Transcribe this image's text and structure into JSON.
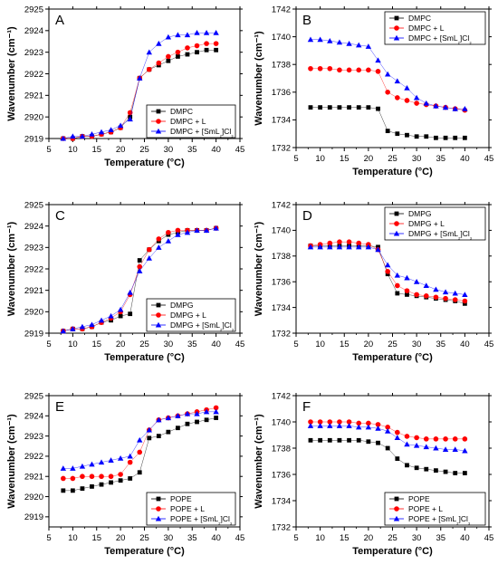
{
  "chart_data": [
    {
      "type": "line",
      "panel": "A",
      "xlabel": "Temperature (°C)",
      "ylabel": "Wavenumber (cm⁻¹)",
      "xlim": [
        5,
        45
      ],
      "ylim": [
        2919,
        2925
      ],
      "xticks": [
        5,
        10,
        15,
        20,
        25,
        30,
        35,
        40,
        45
      ],
      "yticks": [
        2919,
        2920,
        2921,
        2922,
        2923,
        2924,
        2925
      ],
      "legend_position": "bottom-right",
      "x": [
        8,
        10,
        12,
        14,
        16,
        18,
        20,
        22,
        24,
        26,
        28,
        30,
        32,
        34,
        36,
        38,
        40
      ],
      "series": [
        {
          "name": "DMPC",
          "marker": "square",
          "color": "#000000",
          "values": [
            2919.0,
            2919.0,
            2919.1,
            2919.1,
            2919.2,
            2919.3,
            2919.5,
            2920.0,
            2921.8,
            2922.2,
            2922.4,
            2922.6,
            2922.8,
            2922.9,
            2923.0,
            2923.1,
            2923.1
          ]
        },
        {
          "name": "DMPC + L",
          "marker": "circle",
          "color": "#ff0000",
          "values": [
            2919.0,
            2919.0,
            2919.1,
            2919.1,
            2919.2,
            2919.3,
            2919.5,
            2920.2,
            2921.8,
            2922.2,
            2922.5,
            2922.8,
            2923.0,
            2923.2,
            2923.3,
            2923.4,
            2923.4
          ]
        },
        {
          "name": "DMPC + [SmL₂]Cl₃",
          "marker": "triangle",
          "color": "#0000ff",
          "values": [
            2919.0,
            2919.1,
            2919.1,
            2919.2,
            2919.3,
            2919.4,
            2919.6,
            2919.9,
            2921.8,
            2923.0,
            2923.4,
            2923.7,
            2923.8,
            2923.8,
            2923.9,
            2923.9,
            2923.9
          ]
        }
      ]
    },
    {
      "type": "line",
      "panel": "B",
      "xlabel": "Temperature (°C)",
      "ylabel": "Wavenumber (cm⁻¹)",
      "xlim": [
        5,
        45
      ],
      "ylim": [
        1732,
        1742
      ],
      "xticks": [
        5,
        10,
        15,
        20,
        25,
        30,
        35,
        40,
        45
      ],
      "yticks": [
        1732,
        1734,
        1736,
        1738,
        1740,
        1742
      ],
      "legend_position": "top-right",
      "x": [
        8,
        10,
        12,
        14,
        16,
        18,
        20,
        22,
        24,
        26,
        28,
        30,
        32,
        34,
        36,
        38,
        40
      ],
      "series": [
        {
          "name": "DMPC",
          "marker": "square",
          "color": "#000000",
          "values": [
            1734.9,
            1734.9,
            1734.9,
            1734.9,
            1734.9,
            1734.9,
            1734.9,
            1734.8,
            1733.2,
            1733.0,
            1732.9,
            1732.8,
            1732.8,
            1732.7,
            1732.7,
            1732.7,
            1732.7
          ]
        },
        {
          "name": "DMPC + L",
          "marker": "circle",
          "color": "#ff0000",
          "values": [
            1737.7,
            1737.7,
            1737.7,
            1737.6,
            1737.6,
            1737.6,
            1737.6,
            1737.5,
            1736.0,
            1735.6,
            1735.4,
            1735.2,
            1735.1,
            1735.0,
            1734.9,
            1734.8,
            1734.7
          ]
        },
        {
          "name": "DMPC + [SmL₂]Cl₃",
          "marker": "triangle",
          "color": "#0000ff",
          "values": [
            1739.8,
            1739.8,
            1739.7,
            1739.6,
            1739.5,
            1739.4,
            1739.3,
            1738.3,
            1737.3,
            1736.8,
            1736.3,
            1735.6,
            1735.2,
            1735.0,
            1734.9,
            1734.8,
            1734.8
          ]
        }
      ]
    },
    {
      "type": "line",
      "panel": "C",
      "xlabel": "Temperature (°C)",
      "ylabel": "Wavenumber (cm⁻¹)",
      "xlim": [
        5,
        45
      ],
      "ylim": [
        2919,
        2925
      ],
      "xticks": [
        5,
        10,
        15,
        20,
        25,
        30,
        35,
        40,
        45
      ],
      "yticks": [
        2919,
        2920,
        2921,
        2922,
        2923,
        2924,
        2925
      ],
      "legend_position": "bottom-right",
      "x": [
        8,
        10,
        12,
        14,
        16,
        18,
        20,
        22,
        24,
        26,
        28,
        30,
        32,
        34,
        36,
        38,
        40
      ],
      "series": [
        {
          "name": "DMPG",
          "marker": "square",
          "color": "#000000",
          "values": [
            2919.1,
            2919.2,
            2919.2,
            2919.3,
            2919.5,
            2919.6,
            2919.8,
            2919.9,
            2922.4,
            2922.9,
            2923.3,
            2923.6,
            2923.7,
            2923.8,
            2923.8,
            2923.8,
            2923.9
          ]
        },
        {
          "name": "DMPG + L",
          "marker": "circle",
          "color": "#ff0000",
          "values": [
            2919.1,
            2919.2,
            2919.2,
            2919.3,
            2919.5,
            2919.7,
            2920.0,
            2920.8,
            2922.1,
            2922.9,
            2923.4,
            2923.7,
            2923.8,
            2923.8,
            2923.8,
            2923.8,
            2923.9
          ]
        },
        {
          "name": "DMPG + [SmL₂]Cl₃",
          "marker": "triangle",
          "color": "#0000ff",
          "values": [
            2919.1,
            2919.2,
            2919.3,
            2919.4,
            2919.6,
            2919.8,
            2920.1,
            2920.9,
            2921.9,
            2922.5,
            2923.0,
            2923.3,
            2923.6,
            2923.7,
            2923.8,
            2923.8,
            2923.9
          ]
        }
      ]
    },
    {
      "type": "line",
      "panel": "D",
      "xlabel": "Temperature (°C)",
      "ylabel": "Wavenumber (cm⁻¹)",
      "xlim": [
        5,
        45
      ],
      "ylim": [
        1732,
        1742
      ],
      "xticks": [
        5,
        10,
        15,
        20,
        25,
        30,
        35,
        40,
        45
      ],
      "yticks": [
        1732,
        1734,
        1736,
        1738,
        1740,
        1742
      ],
      "legend_position": "top-right",
      "x": [
        8,
        10,
        12,
        14,
        16,
        18,
        20,
        22,
        24,
        26,
        28,
        30,
        32,
        34,
        36,
        38,
        40
      ],
      "series": [
        {
          "name": "DMPG",
          "marker": "square",
          "color": "#000000",
          "values": [
            1738.8,
            1738.8,
            1738.8,
            1738.8,
            1738.8,
            1738.8,
            1738.8,
            1738.7,
            1736.6,
            1735.1,
            1735.0,
            1734.9,
            1734.8,
            1734.7,
            1734.6,
            1734.5,
            1734.3
          ]
        },
        {
          "name": "DMPG + L",
          "marker": "circle",
          "color": "#ff0000",
          "values": [
            1738.8,
            1738.9,
            1739.0,
            1739.1,
            1739.1,
            1739.0,
            1738.9,
            1738.5,
            1736.8,
            1735.7,
            1735.3,
            1735.0,
            1734.9,
            1734.8,
            1734.7,
            1734.6,
            1734.5
          ]
        },
        {
          "name": "DMPG + [SmL₂]Cl₃",
          "marker": "triangle",
          "color": "#0000ff",
          "values": [
            1738.7,
            1738.7,
            1738.7,
            1738.7,
            1738.7,
            1738.7,
            1738.7,
            1738.5,
            1737.3,
            1736.5,
            1736.3,
            1736.0,
            1735.7,
            1735.4,
            1735.2,
            1735.1,
            1735.0
          ]
        }
      ]
    },
    {
      "type": "line",
      "panel": "E",
      "xlabel": "Temperature (°C)",
      "ylabel": "Wavenumber (cm⁻¹)",
      "xlim": [
        5,
        45
      ],
      "ylim": [
        2918.5,
        2925
      ],
      "xticks": [
        5,
        10,
        15,
        20,
        25,
        30,
        35,
        40,
        45
      ],
      "yticks": [
        2919,
        2920,
        2921,
        2922,
        2923,
        2924,
        2925
      ],
      "legend_position": "bottom-right",
      "x": [
        8,
        10,
        12,
        14,
        16,
        18,
        20,
        22,
        24,
        26,
        28,
        30,
        32,
        34,
        36,
        38,
        40
      ],
      "series": [
        {
          "name": "POPE",
          "marker": "square",
          "color": "#000000",
          "values": [
            2920.3,
            2920.3,
            2920.4,
            2920.5,
            2920.6,
            2920.7,
            2920.8,
            2920.9,
            2921.2,
            2922.9,
            2923.0,
            2923.2,
            2923.4,
            2923.6,
            2923.7,
            2923.8,
            2923.9
          ]
        },
        {
          "name": "POPE + L",
          "marker": "circle",
          "color": "#ff0000",
          "values": [
            2920.9,
            2920.9,
            2921.0,
            2921.0,
            2921.0,
            2921.0,
            2921.1,
            2921.7,
            2922.2,
            2923.3,
            2923.8,
            2923.9,
            2924.0,
            2924.1,
            2924.2,
            2924.3,
            2924.4
          ]
        },
        {
          "name": "POPE + [SmL₂]Cl₃",
          "marker": "triangle",
          "color": "#0000ff",
          "values": [
            2921.4,
            2921.4,
            2921.5,
            2921.6,
            2921.7,
            2921.8,
            2921.9,
            2922.0,
            2922.8,
            2923.3,
            2923.8,
            2923.9,
            2924.0,
            2924.1,
            2924.1,
            2924.2,
            2924.2
          ]
        }
      ]
    },
    {
      "type": "line",
      "panel": "F",
      "xlabel": "Temperature (°C)",
      "ylabel": "Wavenumber (cm⁻¹)",
      "xlim": [
        5,
        45
      ],
      "ylim": [
        1732,
        1742
      ],
      "xticks": [
        5,
        10,
        15,
        20,
        25,
        30,
        35,
        40,
        45
      ],
      "yticks": [
        1732,
        1734,
        1736,
        1738,
        1740,
        1742
      ],
      "legend_position": "bottom-right",
      "x": [
        8,
        10,
        12,
        14,
        16,
        18,
        20,
        22,
        24,
        26,
        28,
        30,
        32,
        34,
        36,
        38,
        40
      ],
      "series": [
        {
          "name": "POPE",
          "marker": "square",
          "color": "#000000",
          "values": [
            1738.6,
            1738.6,
            1738.6,
            1738.6,
            1738.6,
            1738.6,
            1738.5,
            1738.4,
            1738.0,
            1737.2,
            1736.7,
            1736.5,
            1736.4,
            1736.3,
            1736.2,
            1736.1,
            1736.1
          ]
        },
        {
          "name": "POPE + L",
          "marker": "circle",
          "color": "#ff0000",
          "values": [
            1740.0,
            1740.0,
            1740.0,
            1740.0,
            1740.0,
            1739.9,
            1739.9,
            1739.8,
            1739.6,
            1739.2,
            1738.9,
            1738.8,
            1738.7,
            1738.7,
            1738.7,
            1738.7,
            1738.7
          ]
        },
        {
          "name": "POPE + [SmL₂]Cl₃",
          "marker": "triangle",
          "color": "#0000ff",
          "values": [
            1739.7,
            1739.7,
            1739.7,
            1739.7,
            1739.7,
            1739.6,
            1739.6,
            1739.5,
            1739.3,
            1738.8,
            1738.3,
            1738.2,
            1738.1,
            1738.0,
            1737.9,
            1737.9,
            1737.8
          ]
        }
      ]
    }
  ]
}
